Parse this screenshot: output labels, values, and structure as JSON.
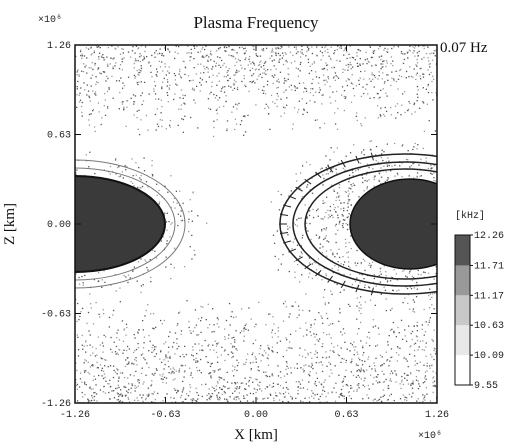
{
  "chart_data": {
    "type": "contour",
    "title": "Plasma Frequency",
    "xlabel": "X [km]",
    "ylabel": "Z [km]",
    "x_offset_label": "×10⁶",
    "y_offset_label": "×10⁶",
    "annotation": "0.07 Hz",
    "xlim": [
      -1.26,
      1.26
    ],
    "ylim": [
      -1.26,
      1.26
    ],
    "xticks": [
      -1.26,
      -0.63,
      {
        "value": 0,
        "label": "0.00"
      },
      0.63,
      1.26
    ],
    "yticks": [
      -1.26,
      -0.63,
      {
        "value": 0,
        "label": "0.00"
      },
      0.63,
      1.26
    ],
    "colorbar": {
      "label": "[kHz]",
      "lim": [
        9.55,
        12.26
      ],
      "ticks": [
        12.26,
        11.71,
        11.17,
        10.63,
        10.09,
        9.55
      ]
    }
  }
}
